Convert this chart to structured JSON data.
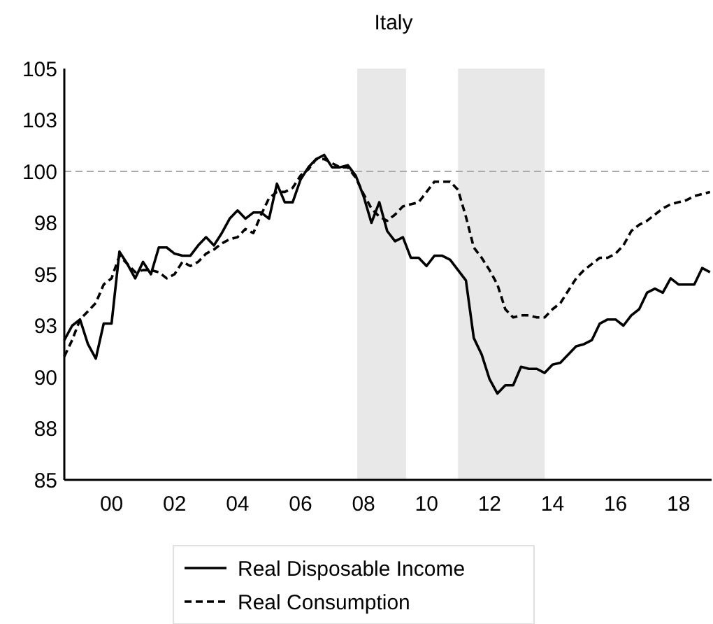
{
  "chart_data": {
    "type": "line",
    "title": "Italy",
    "x": [
      1998.5,
      1998.75,
      1999,
      1999.25,
      1999.5,
      1999.75,
      2000,
      2000.25,
      2000.5,
      2000.75,
      2001,
      2001.25,
      2001.5,
      2001.75,
      2002,
      2002.25,
      2002.5,
      2002.75,
      2003,
      2003.25,
      2003.5,
      2003.75,
      2004,
      2004.25,
      2004.5,
      2004.75,
      2005,
      2005.25,
      2005.5,
      2005.75,
      2006,
      2006.25,
      2006.5,
      2006.75,
      2007,
      2007.25,
      2007.5,
      2007.75,
      2008,
      2008.25,
      2008.5,
      2008.75,
      2009,
      2009.25,
      2009.5,
      2009.75,
      2010,
      2010.25,
      2010.5,
      2010.75,
      2011,
      2011.25,
      2011.5,
      2011.75,
      2012,
      2012.25,
      2012.5,
      2012.75,
      2013,
      2013.25,
      2013.5,
      2013.75,
      2014,
      2014.25,
      2014.5,
      2014.75,
      2015,
      2015.25,
      2015.5,
      2015.75,
      2016,
      2016.25,
      2016.5,
      2016.75,
      2017,
      2017.25,
      2017.5,
      2017.75,
      2018,
      2018.25,
      2018.5,
      2018.75,
      2019
    ],
    "series": [
      {
        "name": "Real Disposable Income",
        "color": "#000000",
        "line_style": "solid",
        "values": [
          91.8,
          92.5,
          92.8,
          91.6,
          90.9,
          92.6,
          92.6,
          96.1,
          95.5,
          94.8,
          95.6,
          95.0,
          96.3,
          96.3,
          96.0,
          95.9,
          95.9,
          96.4,
          96.8,
          96.4,
          97.0,
          97.7,
          98.1,
          97.7,
          98.0,
          98.0,
          97.7,
          99.4,
          98.5,
          98.5,
          99.6,
          100.2,
          100.6,
          100.8,
          100.2,
          100.2,
          100.3,
          99.8,
          98.8,
          97.5,
          98.5,
          97.1,
          96.6,
          96.8,
          95.8,
          95.8,
          95.4,
          95.9,
          95.9,
          95.7,
          95.2,
          94.7,
          91.9,
          91.1,
          89.9,
          89.2,
          89.6,
          89.6,
          90.5,
          90.4,
          90.4,
          90.2,
          90.6,
          90.7,
          91.1,
          91.5,
          91.6,
          91.8,
          92.6,
          92.8,
          92.8,
          92.5,
          93.0,
          93.3,
          94.1,
          94.3,
          94.1,
          94.8,
          94.5,
          94.5,
          94.5,
          95.3,
          95.1
        ]
      },
      {
        "name": "Real Consumption",
        "color": "#000000",
        "line_style": "dashed",
        "values": [
          91.0,
          91.8,
          92.8,
          93.2,
          93.6,
          94.5,
          94.8,
          95.9,
          95.5,
          95.1,
          95.2,
          95.2,
          95.1,
          94.8,
          95.0,
          95.6,
          95.4,
          95.6,
          96.0,
          96.2,
          96.5,
          96.7,
          96.8,
          97.2,
          97.0,
          97.9,
          98.7,
          99.0,
          99.0,
          99.2,
          99.8,
          100.1,
          100.6,
          100.6,
          100.4,
          100.2,
          100.2,
          99.7,
          98.9,
          98.2,
          97.8,
          97.6,
          97.9,
          98.3,
          98.4,
          98.5,
          99.0,
          99.5,
          99.5,
          99.5,
          99.1,
          97.8,
          96.3,
          95.8,
          95.2,
          94.5,
          93.3,
          92.9,
          93.0,
          93.0,
          92.9,
          92.9,
          93.3,
          93.6,
          94.2,
          94.8,
          95.2,
          95.5,
          95.8,
          95.8,
          96.0,
          96.4,
          97.1,
          97.4,
          97.6,
          97.9,
          98.2,
          98.4,
          98.5,
          98.6,
          98.8,
          98.9,
          99.0
        ]
      }
    ],
    "xlim": [
      1998.5,
      2019.05
    ],
    "xticks": [
      {
        "value": 2000,
        "label": "00"
      },
      {
        "value": 2002,
        "label": "02"
      },
      {
        "value": 2004,
        "label": "04"
      },
      {
        "value": 2006,
        "label": "06"
      },
      {
        "value": 2008,
        "label": "08"
      },
      {
        "value": 2010,
        "label": "10"
      },
      {
        "value": 2012,
        "label": "12"
      },
      {
        "value": 2014,
        "label": "14"
      },
      {
        "value": 2016,
        "label": "16"
      },
      {
        "value": 2018,
        "label": "18"
      }
    ],
    "ylim": [
      85,
      105
    ],
    "yticks": [
      85,
      {
        "value": 87.5,
        "label": "88"
      },
      90,
      {
        "value": 92.5,
        "label": "93"
      },
      95,
      {
        "value": 97.5,
        "label": "98"
      },
      100,
      {
        "value": 102.5,
        "label": "103"
      },
      105
    ],
    "ref_lines": [
      {
        "axis": "y",
        "value": 100,
        "color": "#aaaaaa",
        "line_style": "dashed"
      }
    ],
    "bands": [
      {
        "axis": "x",
        "from": 2007.8,
        "to": 2009.35,
        "color": "#e8e8e8"
      },
      {
        "axis": "x",
        "from": 2011.0,
        "to": 2013.75,
        "color": "#e8e8e8"
      }
    ],
    "legend": "bottom",
    "grid": false,
    "marker": "none"
  }
}
